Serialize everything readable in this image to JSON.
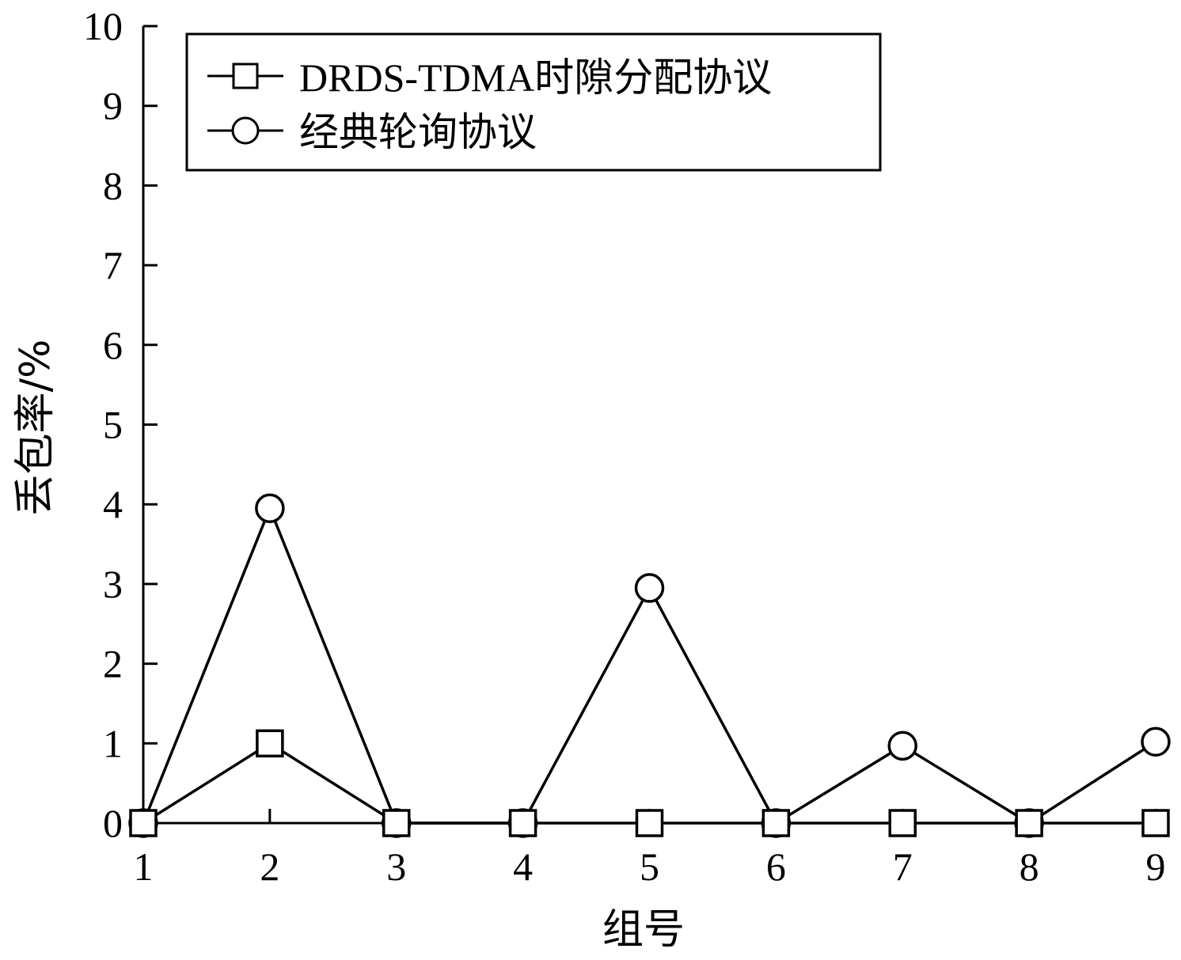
{
  "chart_data": {
    "type": "line",
    "x": [
      1,
      2,
      3,
      4,
      5,
      6,
      7,
      8,
      9
    ],
    "xlabel": "组号",
    "ylabel": "丢包率/%",
    "xlim": [
      1,
      9
    ],
    "ylim": [
      0,
      10
    ],
    "x_ticks": [
      "1",
      "2",
      "3",
      "4",
      "5",
      "6",
      "7",
      "8",
      "9"
    ],
    "y_ticks": [
      "0",
      "1",
      "2",
      "3",
      "4",
      "5",
      "6",
      "7",
      "8",
      "9",
      "10"
    ],
    "grid": false,
    "legend_position": "top-left",
    "series": [
      {
        "name": "DRDS-TDMA时隙分配协议",
        "marker": "square",
        "color": "#000000",
        "values": [
          0,
          1,
          0,
          0,
          0,
          0,
          0,
          0,
          0
        ]
      },
      {
        "name": "经典轮询协议",
        "marker": "circle",
        "color": "#000000",
        "values": [
          0,
          3.95,
          0,
          0,
          2.95,
          0,
          0.97,
          0,
          1.02
        ]
      }
    ]
  }
}
